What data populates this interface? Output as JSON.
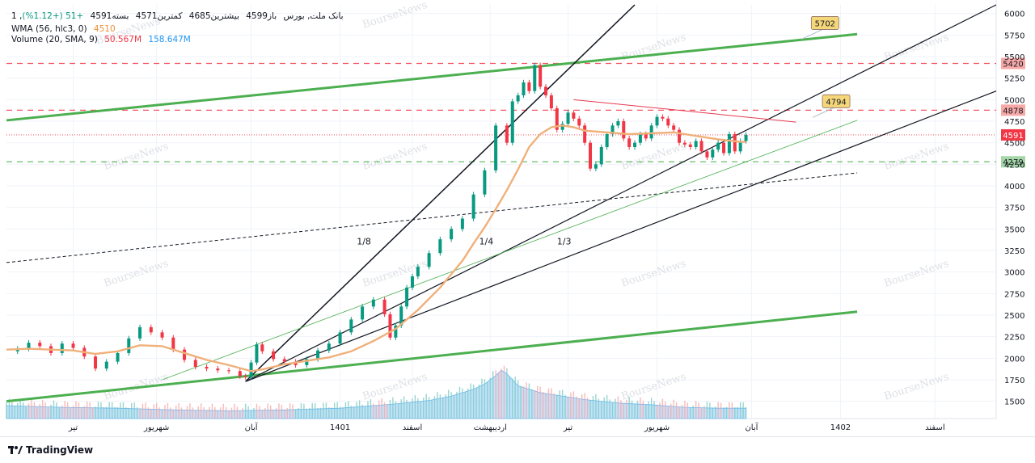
{
  "legend": {
    "symbol": "1 ,بانک ملت, بورس",
    "open": "باز4599",
    "high": "بیشترین4685",
    "low": "کمترین4571",
    "close": "بسته4591",
    "change": "+51 (+1.12%)",
    "wma_label": "WMA (56, hlc3, 0)",
    "wma_value": "4510",
    "vol_label": "Volume (20, SMA, 9)",
    "vol_value1": "50.567M",
    "vol_value2": "158.647M"
  },
  "footer": {
    "brand": "TradingView"
  },
  "watermark": "BourseNews",
  "colors": {
    "up": "#089981",
    "down": "#f23645",
    "wma": "#f0b07a",
    "volume_area": "#90caf9",
    "green_line": "#4caf50",
    "red_dash": "#f23645",
    "green_dash": "#4caf50"
  },
  "chart_data": {
    "type": "candlestick",
    "ylim": [
      1300,
      6100
    ],
    "y_ticks": [
      "1500",
      "1750",
      "2000",
      "2250",
      "2500",
      "2750",
      "3000",
      "3250",
      "3500",
      "3750",
      "4000",
      "4250",
      "4500",
      "4750",
      "5000",
      "5250",
      "5500",
      "5750",
      "6000"
    ],
    "x_ticks": [
      {
        "label": "تیر",
        "t": 12
      },
      {
        "label": "شهریور",
        "t": 27
      },
      {
        "label": "آبان",
        "t": 44
      },
      {
        "label": "1401",
        "t": 60
      },
      {
        "label": "اسفند",
        "t": 73
      },
      {
        "label": "اردیبهشت",
        "t": 87
      },
      {
        "label": "تیر",
        "t": 101
      },
      {
        "label": "شهریور",
        "t": 117
      },
      {
        "label": "آبان",
        "t": 134
      },
      {
        "label": "1402",
        "t": 150
      },
      {
        "label": "اسفند",
        "t": 167
      }
    ],
    "t_range": [
      0,
      178
    ],
    "close_series": [
      [
        0,
        2080
      ],
      [
        2,
        2110
      ],
      [
        4,
        2180
      ],
      [
        6,
        2140
      ],
      [
        8,
        2060
      ],
      [
        10,
        2170
      ],
      [
        12,
        2120
      ],
      [
        14,
        2020
      ],
      [
        16,
        1880
      ],
      [
        18,
        1960
      ],
      [
        20,
        2060
      ],
      [
        22,
        2230
      ],
      [
        24,
        2360
      ],
      [
        26,
        2300
      ],
      [
        28,
        2240
      ],
      [
        30,
        2100
      ],
      [
        32,
        1980
      ],
      [
        34,
        1900
      ],
      [
        36,
        1880
      ],
      [
        38,
        1860
      ],
      [
        40,
        1850
      ],
      [
        42,
        1790
      ],
      [
        43,
        1780
      ],
      [
        44,
        1950
      ],
      [
        45,
        2160
      ],
      [
        46,
        2080
      ],
      [
        48,
        1990
      ],
      [
        50,
        1960
      ],
      [
        52,
        1920
      ],
      [
        54,
        1990
      ],
      [
        56,
        2090
      ],
      [
        58,
        2170
      ],
      [
        60,
        2300
      ],
      [
        62,
        2450
      ],
      [
        64,
        2600
      ],
      [
        66,
        2680
      ],
      [
        68,
        2510
      ],
      [
        69,
        2240
      ],
      [
        70,
        2380
      ],
      [
        71,
        2600
      ],
      [
        72,
        2820
      ],
      [
        73,
        2950
      ],
      [
        74,
        3060
      ],
      [
        76,
        3220
      ],
      [
        78,
        3380
      ],
      [
        80,
        3500
      ],
      [
        82,
        3620
      ],
      [
        84,
        3900
      ],
      [
        86,
        4180
      ],
      [
        88,
        4700
      ],
      [
        90,
        4500
      ],
      [
        91,
        4980
      ],
      [
        92,
        5050
      ],
      [
        93,
        5200
      ],
      [
        94,
        5100
      ],
      [
        95,
        5400
      ],
      [
        96,
        5150
      ],
      [
        97,
        5050
      ],
      [
        98,
        4900
      ],
      [
        99,
        4650
      ],
      [
        100,
        4720
      ],
      [
        101,
        4850
      ],
      [
        102,
        4780
      ],
      [
        103,
        4700
      ],
      [
        104,
        4500
      ],
      [
        105,
        4200
      ],
      [
        106,
        4250
      ],
      [
        107,
        4450
      ],
      [
        108,
        4600
      ],
      [
        109,
        4700
      ],
      [
        110,
        4750
      ],
      [
        111,
        4550
      ],
      [
        112,
        4450
      ],
      [
        113,
        4500
      ],
      [
        114,
        4600
      ],
      [
        115,
        4550
      ],
      [
        116,
        4700
      ],
      [
        117,
        4800
      ],
      [
        118,
        4780
      ],
      [
        119,
        4700
      ],
      [
        120,
        4650
      ],
      [
        121,
        4500
      ],
      [
        122,
        4480
      ],
      [
        123,
        4450
      ],
      [
        124,
        4520
      ],
      [
        125,
        4400
      ],
      [
        126,
        4330
      ],
      [
        127,
        4420
      ],
      [
        128,
        4500
      ],
      [
        129,
        4380
      ],
      [
        130,
        4600
      ],
      [
        131,
        4400
      ],
      [
        132,
        4520
      ],
      [
        133,
        4591
      ]
    ],
    "wma_series": [
      [
        0,
        2100
      ],
      [
        4,
        2110
      ],
      [
        8,
        2100
      ],
      [
        12,
        2090
      ],
      [
        16,
        2050
      ],
      [
        20,
        2080
      ],
      [
        24,
        2150
      ],
      [
        28,
        2140
      ],
      [
        32,
        2060
      ],
      [
        36,
        1980
      ],
      [
        40,
        1920
      ],
      [
        44,
        1850
      ],
      [
        46,
        1870
      ],
      [
        50,
        1930
      ],
      [
        54,
        1970
      ],
      [
        58,
        2010
      ],
      [
        62,
        2080
      ],
      [
        66,
        2200
      ],
      [
        70,
        2340
      ],
      [
        74,
        2560
      ],
      [
        78,
        2820
      ],
      [
        82,
        3130
      ],
      [
        84,
        3330
      ],
      [
        86,
        3520
      ],
      [
        88,
        3730
      ],
      [
        90,
        3950
      ],
      [
        92,
        4190
      ],
      [
        94,
        4450
      ],
      [
        96,
        4600
      ],
      [
        98,
        4680
      ],
      [
        100,
        4700
      ],
      [
        102,
        4680
      ],
      [
        104,
        4640
      ],
      [
        108,
        4620
      ],
      [
        112,
        4600
      ],
      [
        116,
        4610
      ],
      [
        120,
        4620
      ],
      [
        124,
        4580
      ],
      [
        128,
        4540
      ],
      [
        132,
        4510
      ],
      [
        133,
        4510
      ]
    ],
    "volume_sma_series": [
      [
        0,
        1450
      ],
      [
        10,
        1430
      ],
      [
        20,
        1420
      ],
      [
        30,
        1400
      ],
      [
        40,
        1390
      ],
      [
        50,
        1400
      ],
      [
        60,
        1420
      ],
      [
        70,
        1470
      ],
      [
        76,
        1510
      ],
      [
        80,
        1560
      ],
      [
        84,
        1640
      ],
      [
        86,
        1700
      ],
      [
        88,
        1800
      ],
      [
        89,
        1860
      ],
      [
        90,
        1820
      ],
      [
        92,
        1680
      ],
      [
        96,
        1600
      ],
      [
        100,
        1560
      ],
      [
        104,
        1520
      ],
      [
        110,
        1480
      ],
      [
        116,
        1460
      ],
      [
        122,
        1430
      ],
      [
        128,
        1420
      ],
      [
        133,
        1420
      ]
    ],
    "horizontal_levels": [
      {
        "value": 5420,
        "label": "5420",
        "style": "red-dash"
      },
      {
        "value": 4878,
        "label": "4878",
        "style": "red-dash"
      },
      {
        "value": 4279,
        "label": "4279",
        "style": "green-dash"
      }
    ],
    "current_price": {
      "value": 4591,
      "label": "4591"
    },
    "callouts": [
      {
        "label": "5702",
        "t": 143,
        "value": 5702
      },
      {
        "label": "4794",
        "t": 145,
        "value": 4794
      }
    ],
    "fib_labels": [
      "1/8",
      "1/4",
      "1/3"
    ],
    "trendlines": [
      {
        "color": "green",
        "width": 3,
        "p1": [
          0,
          4760
        ],
        "p2": [
          153,
          5760
        ]
      },
      {
        "color": "green",
        "width": 3,
        "p1": [
          0,
          1500
        ],
        "p2": [
          153,
          2540
        ]
      },
      {
        "color": "black",
        "width": 1.5,
        "p1": [
          43,
          1730
        ],
        "p2": [
          113,
          6100
        ]
      },
      {
        "color": "black",
        "width": 1.2,
        "p1": [
          43,
          1730
        ],
        "p2": [
          178,
          6100
        ]
      },
      {
        "color": "black",
        "width": 1.2,
        "p1": [
          43,
          1730
        ],
        "p2": [
          178,
          5100
        ]
      },
      {
        "color": "black",
        "width": 1,
        "dash": true,
        "p1": [
          0,
          3110
        ],
        "p2": [
          153,
          4150
        ]
      },
      {
        "color": "green",
        "width": 0.8,
        "p1": [
          28,
          1750
        ],
        "p2": [
          153,
          4760
        ]
      },
      {
        "color": "red",
        "width": 1,
        "p1": [
          102,
          5000
        ],
        "p2": [
          142,
          4740
        ]
      }
    ]
  }
}
